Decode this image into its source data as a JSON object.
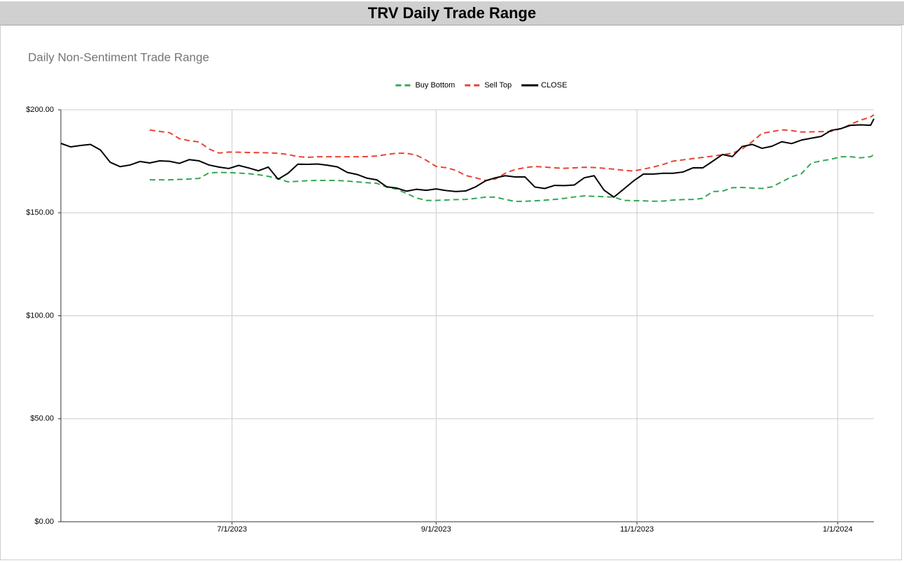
{
  "chart_data": {
    "type": "line",
    "title": "TRV Daily Trade Range",
    "subtitle": "Daily Non-Sentiment Trade Range",
    "x": [
      "5/10/2023",
      "5/13/2023",
      "5/16/2023",
      "5/19/2023",
      "5/22/2023",
      "5/25/2023",
      "5/28/2023",
      "5/31/2023",
      "6/3/2023",
      "6/6/2023",
      "6/9/2023",
      "6/12/2023",
      "6/15/2023",
      "6/18/2023",
      "6/21/2023",
      "6/24/2023",
      "6/27/2023",
      "6/30/2023",
      "7/3/2023",
      "7/6/2023",
      "7/9/2023",
      "7/12/2023",
      "7/15/2023",
      "7/18/2023",
      "7/21/2023",
      "7/24/2023",
      "7/27/2023",
      "7/30/2023",
      "8/2/2023",
      "8/5/2023",
      "8/8/2023",
      "8/11/2023",
      "8/14/2023",
      "8/17/2023",
      "8/20/2023",
      "8/23/2023",
      "8/26/2023",
      "8/29/2023",
      "9/1/2023",
      "9/4/2023",
      "9/7/2023",
      "9/10/2023",
      "9/13/2023",
      "9/16/2023",
      "9/19/2023",
      "9/22/2023",
      "9/25/2023",
      "9/28/2023",
      "10/1/2023",
      "10/4/2023",
      "10/7/2023",
      "10/10/2023",
      "10/13/2023",
      "10/16/2023",
      "10/19/2023",
      "10/22/2023",
      "10/25/2023",
      "10/28/2023",
      "10/31/2023",
      "11/3/2023",
      "11/6/2023",
      "11/9/2023",
      "11/12/2023",
      "11/15/2023",
      "11/18/2023",
      "11/21/2023",
      "11/24/2023",
      "11/27/2023",
      "11/30/2023",
      "12/3/2023",
      "12/6/2023",
      "12/9/2023",
      "12/12/2023",
      "12/15/2023",
      "12/18/2023",
      "12/21/2023",
      "12/24/2023",
      "12/27/2023",
      "12/30/2023",
      "1/2/2024",
      "1/5/2024",
      "1/8/2024",
      "1/11/2024",
      "1/12/2024"
    ],
    "series": [
      {
        "name": "Buy Bottom",
        "color": "#34a853",
        "dash": true,
        "values": [
          null,
          null,
          null,
          null,
          null,
          null,
          null,
          null,
          null,
          166.0,
          166.0,
          166.0,
          166.2,
          166.4,
          166.7,
          169.4,
          169.6,
          169.5,
          169.3,
          169.0,
          168.5,
          167.7,
          166.6,
          165.0,
          165.3,
          165.6,
          165.7,
          165.7,
          165.7,
          165.4,
          165.0,
          164.6,
          164.3,
          162.5,
          161.5,
          159.4,
          157.2,
          156.0,
          156.0,
          156.2,
          156.4,
          156.5,
          157.0,
          157.6,
          157.6,
          156.5,
          155.5,
          155.6,
          155.8,
          156.1,
          156.5,
          157.0,
          157.7,
          158.2,
          158.0,
          157.8,
          157.6,
          156.0,
          155.9,
          155.8,
          155.6,
          155.7,
          156.2,
          156.4,
          156.5,
          157.0,
          160.3,
          160.5,
          162.2,
          162.3,
          162.0,
          161.8,
          162.6,
          165.0,
          167.5,
          169.0,
          174.2,
          175.2,
          176.0,
          177.2,
          177.2,
          176.7,
          177.2,
          178.3
        ]
      },
      {
        "name": "Sell Top",
        "color": "#ea4335",
        "dash": true,
        "values": [
          null,
          null,
          null,
          null,
          null,
          null,
          null,
          null,
          null,
          190.2,
          189.5,
          188.9,
          186.0,
          185.0,
          184.4,
          181.0,
          179.0,
          179.5,
          179.4,
          179.3,
          179.2,
          179.1,
          178.9,
          178.3,
          177.3,
          176.9,
          177.2,
          177.2,
          177.2,
          177.2,
          177.2,
          177.3,
          177.6,
          178.3,
          178.9,
          178.9,
          178.0,
          175.5,
          172.5,
          171.9,
          170.6,
          168.1,
          167.0,
          165.7,
          166.4,
          169.2,
          171.0,
          171.9,
          172.5,
          172.2,
          171.8,
          171.6,
          171.8,
          172.1,
          172.0,
          171.6,
          171.2,
          170.6,
          170.3,
          171.2,
          172.2,
          173.5,
          175.1,
          175.7,
          176.3,
          176.9,
          177.5,
          178.2,
          178.9,
          181.0,
          184.5,
          188.6,
          189.4,
          190.3,
          189.9,
          189.2,
          189.3,
          189.4,
          189.5,
          190.8,
          193.0,
          195.0,
          196.5,
          197.6
        ]
      },
      {
        "name": "CLOSE",
        "color": "#000000",
        "dash": false,
        "values": [
          183.7,
          182.0,
          182.7,
          183.2,
          180.5,
          174.5,
          172.4,
          173.2,
          174.9,
          174.2,
          175.2,
          175.0,
          174.0,
          175.8,
          175.2,
          173.2,
          172.2,
          171.5,
          173.0,
          171.8,
          170.4,
          172.2,
          166.3,
          169.2,
          173.6,
          173.5,
          173.7,
          173.1,
          172.3,
          169.6,
          168.6,
          166.8,
          166.0,
          162.6,
          162.0,
          160.5,
          161.4,
          160.9,
          161.6,
          160.8,
          160.3,
          160.6,
          162.6,
          165.5,
          167.0,
          168.0,
          167.4,
          167.4,
          162.5,
          161.8,
          163.3,
          163.2,
          163.5,
          167.0,
          168.0,
          161.0,
          157.6,
          161.5,
          165.5,
          168.8,
          168.8,
          169.2,
          169.2,
          169.8,
          171.8,
          171.8,
          175.0,
          178.3,
          177.3,
          182.2,
          183.2,
          181.3,
          182.3,
          184.5,
          183.6,
          185.3,
          186.2,
          187.1,
          190.0,
          190.9,
          192.5,
          192.7,
          192.5,
          195.6
        ]
      }
    ],
    "xlim": [
      "5/10/2023",
      "1/12/2024"
    ],
    "xticks": [
      "7/1/2023",
      "9/1/2023",
      "11/1/2023",
      "1/1/2024"
    ],
    "ylim": [
      0,
      200
    ],
    "yticks": [
      {
        "value": 0,
        "label": "$0.00"
      },
      {
        "value": 50,
        "label": "$50.00"
      },
      {
        "value": 100,
        "label": "$100.00"
      },
      {
        "value": 150,
        "label": "$150.00"
      },
      {
        "value": 200,
        "label": "$200.00"
      }
    ],
    "grid": true,
    "legend": "top"
  }
}
